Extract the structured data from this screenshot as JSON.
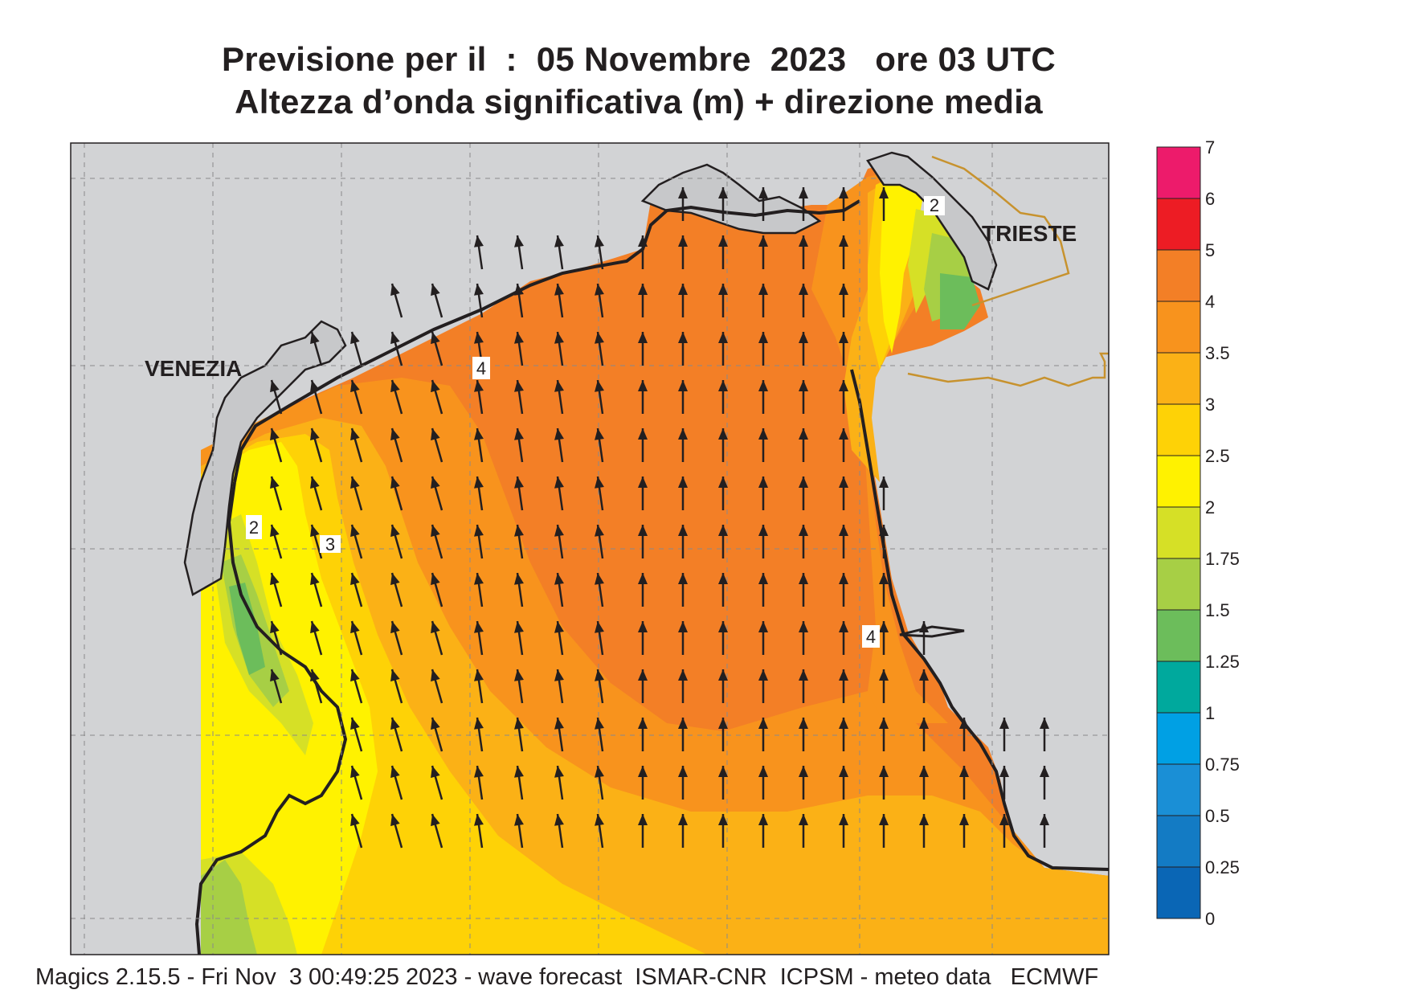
{
  "header": {
    "title_line1": "Previsione per il  :  05 Novembre  2023   ore 03 UTC",
    "title_line2": "Altezza d’onda significativa (m) + direzione media"
  },
  "map": {
    "place_labels": [
      "VENEZIA",
      "TRIESTE"
    ],
    "contour_labels": [
      "2",
      "3",
      "4",
      "4",
      "2"
    ],
    "arrow_direction": "north / north-northwest",
    "colors": {
      "land": "#d2d3d5",
      "sea_green": "#6cbd5b",
      "sea_lightgreen": "#a7cf45",
      "sea_yellowgreen": "#d6e026",
      "sea_yellow": "#fff200",
      "sea_gold": "#fed206",
      "sea_lightorange": "#fbb116",
      "sea_orange": "#f8931d",
      "sea_darkorange": "#f37f26",
      "coast": "#231f20",
      "border": "#c7922e"
    }
  },
  "legend": {
    "title": "",
    "levels": [
      "7",
      "6",
      "5",
      "4",
      "3.5",
      "3",
      "2.5",
      "2",
      "1.75",
      "1.5",
      "1.25",
      "1",
      "0.75",
      "0.5",
      "0.25",
      "0"
    ],
    "colors": [
      "#ed1b6b",
      "#ed1c24",
      "#f37f26",
      "#f8931d",
      "#fbb116",
      "#fed206",
      "#fff200",
      "#d6e026",
      "#a7cf45",
      "#6cbd5b",
      "#00a99d",
      "#00a0e4",
      "#1a8fd6",
      "#137bc4",
      "#0a66b5"
    ]
  },
  "footer": {
    "text": "Magics 2.15.5 - Fri Nov  3 00:49:25 2023 - wave forecast  ISMAR-CNR  ICPSM - meteo data   ECMWF"
  }
}
